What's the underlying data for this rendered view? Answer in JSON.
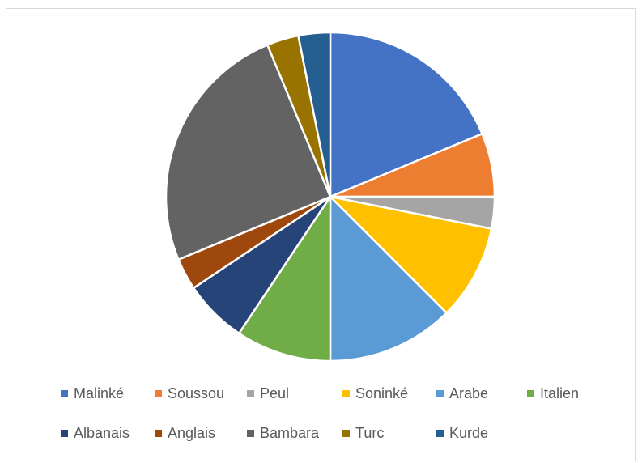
{
  "chart_data": {
    "type": "pie",
    "categories": [
      "Malinké",
      "Soussou",
      "Peul",
      "Soninké",
      "Arabe",
      "Italien",
      "Albanais",
      "Anglais",
      "Bambara",
      "Turc",
      "Kurde"
    ],
    "values": [
      18.75,
      6.25,
      3.125,
      9.375,
      12.5,
      9.375,
      6.25,
      3.125,
      25,
      3.125,
      3.125
    ],
    "colors": [
      "#4472C4",
      "#ED7D31",
      "#A5A5A5",
      "#FFC000",
      "#5B9BD5",
      "#70AD47",
      "#264478",
      "#9E480E",
      "#636363",
      "#997300",
      "#255E91"
    ],
    "start_angle": "12 o'clock",
    "direction": "clockwise",
    "legend_position": "bottom",
    "title": ""
  }
}
